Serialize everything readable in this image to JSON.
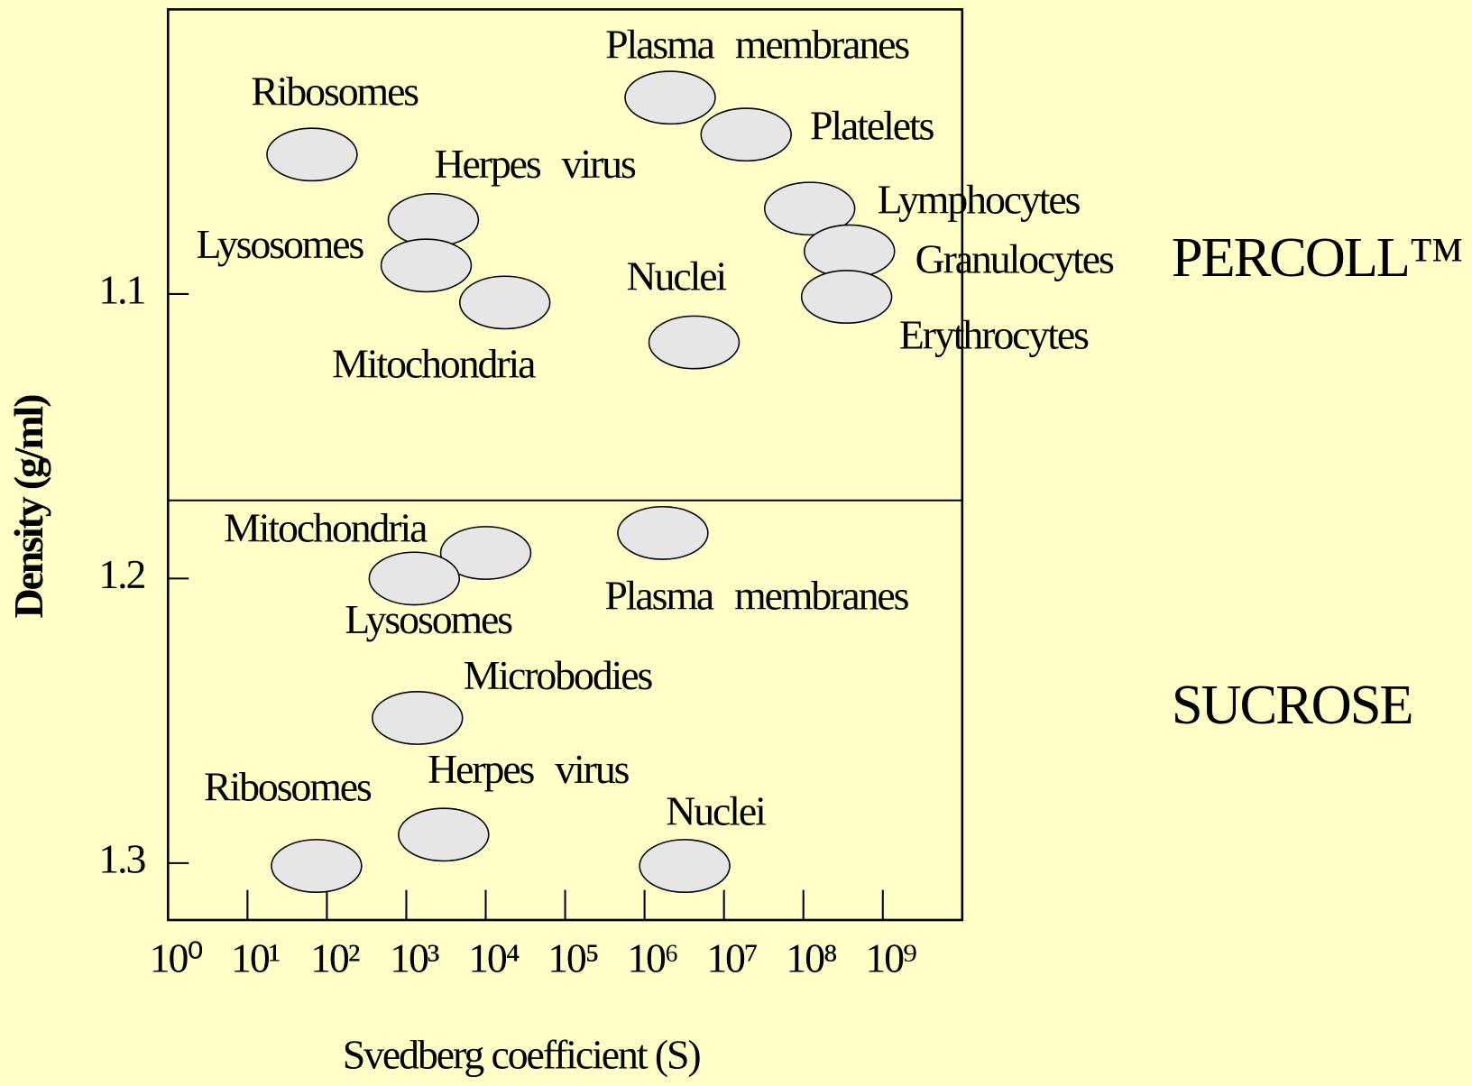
{
  "chart_data": {
    "type": "scatter",
    "x_label": "Svedberg coefficient (S)",
    "y_label": "Density (g/ml)",
    "xlog": true,
    "y_inverted": true,
    "xlim": [
      1,
      10000000000
    ],
    "ylim": [
      1.0,
      1.32
    ],
    "xticks": [
      {
        "value": 1,
        "label": "10⁰"
      },
      {
        "value": 10,
        "label": "10¹"
      },
      {
        "value": 100,
        "label": "10²"
      },
      {
        "value": 1000,
        "label": "10³"
      },
      {
        "value": 10000,
        "label": "10⁴"
      },
      {
        "value": 100000,
        "label": "10⁵"
      },
      {
        "value": 1000000,
        "label": "10⁶"
      },
      {
        "value": 10000000,
        "label": "10⁷"
      },
      {
        "value": 100000000,
        "label": "10⁸"
      },
      {
        "value": 1000000000,
        "label": "10⁹"
      }
    ],
    "yticks": [
      1.1,
      1.2,
      1.3
    ],
    "series": [
      {
        "name": "PERCOLL™",
        "color": "#e6e6e6",
        "labels": [
          "Ribosomes",
          "Herpes virus",
          "Lysosomes",
          "Mitochondria",
          "Plasma membranes",
          "Platelets",
          "Lymphocytes",
          "Granulocytes",
          "Erythrocytes",
          "Nuclei"
        ],
        "x": [
          65,
          2190,
          1780,
          17400,
          2100000,
          19000000,
          120000000,
          380000000,
          350000000,
          4200000
        ],
        "values": [
          1.051,
          1.074,
          1.09,
          1.103,
          1.031,
          1.044,
          1.07,
          1.085,
          1.101,
          1.117
        ]
      },
      {
        "name": "SUCROSE",
        "color": "#e6e6e6",
        "labels": [
          "Mitochondria",
          "Lysosomes",
          "Plasma membranes",
          "Microbodies",
          "Herpes virus",
          "Ribosomes",
          "Nuclei"
        ],
        "x": [
          10000,
          1260,
          1700000,
          1380,
          2950,
          74,
          3200000
        ],
        "values": [
          1.191,
          1.2,
          1.184,
          1.249,
          1.29,
          1.301,
          1.301
        ]
      }
    ]
  }
}
